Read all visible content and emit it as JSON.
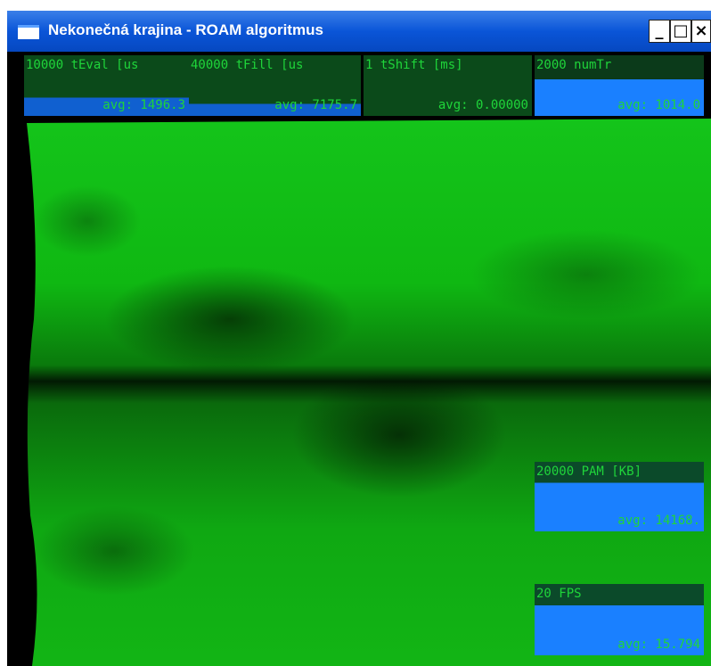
{
  "window": {
    "title": "Nekonečná krajina - ROAM algoritmus"
  },
  "panels": [
    {
      "label": "10000 tEval [us",
      "avg": "avg: 1496.3"
    },
    {
      "label": "40000 tFill [us",
      "avg": "avg: 7175.7"
    },
    {
      "label": "1 tShift [ms]",
      "avg": "avg: 0.00000"
    },
    {
      "label": "2000 numTr",
      "avg": "avg: 1014.0"
    },
    {
      "label": "20000 PAM [KB]",
      "avg": "avg: 14168."
    },
    {
      "label": "20 FPS",
      "avg": "avg: 15.794"
    }
  ]
}
